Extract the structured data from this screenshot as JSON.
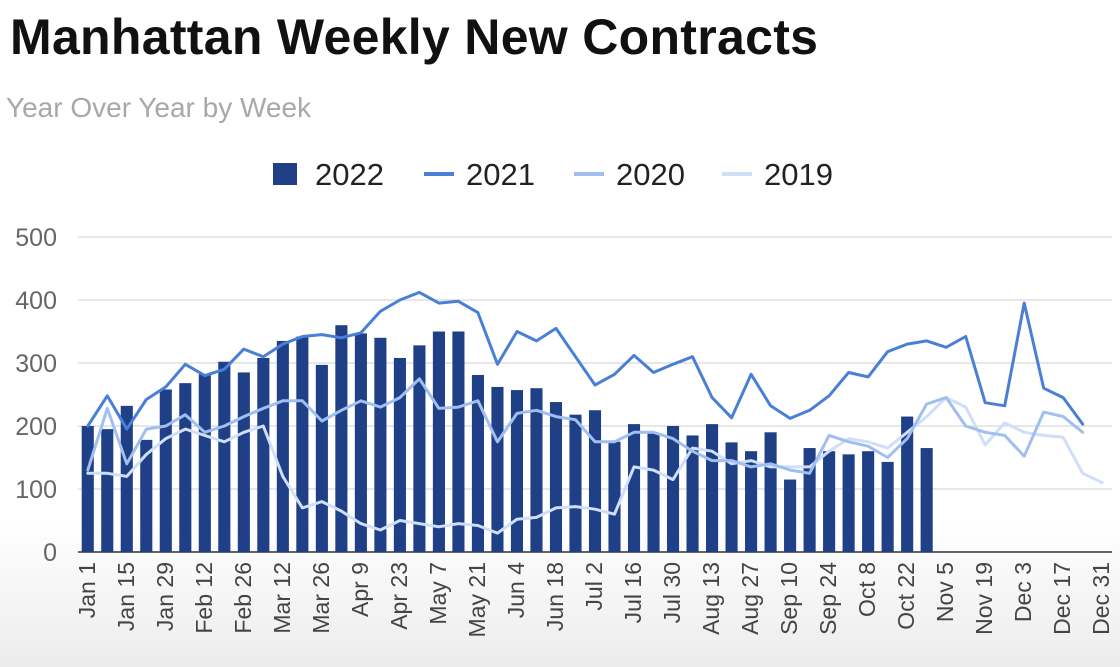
{
  "title": "Manhattan Weekly New Contracts",
  "subtitle": "Year Over Year by Week",
  "chart_data": {
    "type": "bar",
    "title": "Manhattan Weekly New Contracts",
    "subtitle": "Year Over Year by Week",
    "xlabel": "",
    "ylabel": "",
    "ylim": [
      0,
      500
    ],
    "yticks": [
      0,
      100,
      200,
      300,
      400,
      500
    ],
    "grid": true,
    "legend_position": "top",
    "x_tick_labels": [
      "Jan 1",
      "Jan 15",
      "Jan 29",
      "Feb 12",
      "Feb 26",
      "Mar 12",
      "Mar 26",
      "Apr 9",
      "Apr 23",
      "May 7",
      "May 21",
      "Jun 4",
      "Jun 18",
      "Jul 2",
      "Jul 16",
      "Jul 30",
      "Aug 13",
      "Aug 27",
      "Sep 10",
      "Sep 24",
      "Oct 8",
      "Oct 22",
      "Nov 5",
      "Nov 19",
      "Dec 3",
      "Dec 17",
      "Dec 31"
    ],
    "weeks": 53,
    "series": [
      {
        "name": "2022",
        "type": "bar",
        "color": "#1f3f86",
        "values": [
          200,
          195,
          232,
          178,
          258,
          268,
          282,
          302,
          285,
          308,
          335,
          342,
          297,
          360,
          347,
          340,
          308,
          328,
          350,
          350,
          281,
          262,
          257,
          260,
          238,
          218,
          225,
          175,
          203,
          188,
          200,
          185,
          203,
          174,
          160,
          190,
          115,
          165,
          160,
          155,
          160,
          143,
          215,
          165
        ]
      },
      {
        "name": "2021",
        "type": "line",
        "color": "#4a7fd8",
        "values": [
          200,
          248,
          195,
          242,
          262,
          298,
          280,
          290,
          322,
          310,
          330,
          342,
          345,
          340,
          348,
          382,
          400,
          412,
          395,
          398,
          380,
          298,
          350,
          335,
          355,
          310,
          265,
          282,
          312,
          285,
          298,
          310,
          245,
          213,
          282,
          232,
          212,
          225,
          248,
          285,
          278,
          318,
          330,
          335,
          325,
          342,
          237,
          232,
          395,
          260,
          245,
          203
        ]
      },
      {
        "name": "2020",
        "type": "line",
        "color": "#a0bff0",
        "values": [
          130,
          228,
          140,
          195,
          200,
          218,
          190,
          200,
          215,
          228,
          240,
          240,
          208,
          225,
          240,
          230,
          245,
          275,
          228,
          230,
          240,
          175,
          220,
          225,
          215,
          210,
          175,
          175,
          190,
          190,
          180,
          160,
          145,
          145,
          135,
          140,
          130,
          125,
          185,
          175,
          168,
          150,
          180,
          235,
          245,
          200,
          190,
          185,
          152,
          222,
          215,
          190
        ]
      },
      {
        "name": "2019",
        "type": "line",
        "color": "#cfdff8",
        "values": [
          125,
          125,
          120,
          155,
          180,
          195,
          185,
          175,
          190,
          200,
          120,
          70,
          80,
          65,
          45,
          35,
          50,
          45,
          40,
          45,
          42,
          30,
          52,
          55,
          70,
          72,
          68,
          60,
          135,
          130,
          115,
          165,
          160,
          140,
          145,
          135,
          135,
          135,
          160,
          180,
          175,
          165,
          190,
          215,
          245,
          230,
          170,
          205,
          190,
          185,
          182,
          125,
          110
        ]
      }
    ]
  }
}
